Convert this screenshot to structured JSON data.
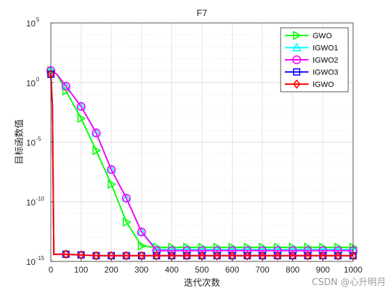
{
  "chart_data": {
    "type": "line",
    "title": "F7",
    "xlabel": "迭代次数",
    "ylabel": "目标函数值",
    "xlim": [
      0,
      1000
    ],
    "ylim": [
      1e-15,
      100000
    ],
    "yscale": "log",
    "grid": true,
    "legend_position": "top-right",
    "x_ticks": [
      0,
      100,
      200,
      300,
      400,
      500,
      600,
      700,
      800,
      900,
      1000
    ],
    "y_ticks": [
      {
        "base": "10",
        "exp": "-15",
        "value": 1e-15
      },
      {
        "base": "10",
        "exp": "-10",
        "value": 1e-10
      },
      {
        "base": "10",
        "exp": "-5",
        "value": 1e-05
      },
      {
        "base": "10",
        "exp": "0",
        "value": 1
      },
      {
        "base": "10",
        "exp": "5",
        "value": 100000
      }
    ],
    "series": [
      {
        "name": "GWO",
        "color": "#00ff00",
        "marker": "triangle-right",
        "x": [
          0,
          20,
          50,
          100,
          150,
          200,
          250,
          300,
          350,
          400,
          450,
          500,
          550,
          600,
          650,
          700,
          750,
          800,
          850,
          900,
          950,
          1000
        ],
        "y": [
          10,
          5,
          0.2,
          0.001,
          2e-06,
          3e-09,
          2e-12,
          2e-14,
          1.5e-14,
          1.5e-14,
          1.5e-14,
          1.5e-14,
          1.5e-14,
          1.5e-14,
          1.5e-14,
          1.5e-14,
          1.5e-14,
          1.5e-14,
          1.5e-14,
          1.5e-14,
          1.5e-14,
          1.5e-14
        ]
      },
      {
        "name": "IGWO1",
        "color": "#00ffff",
        "marker": "triangle-up",
        "x": [
          0,
          20,
          50,
          100,
          150,
          200,
          250,
          300,
          350,
          400,
          450,
          500,
          550,
          600,
          650,
          700,
          750,
          800,
          850,
          900,
          950,
          1000
        ],
        "y": [
          10,
          5,
          0.5,
          0.01,
          6e-05,
          5e-08,
          2e-10,
          3e-13,
          1e-14,
          1e-14,
          1e-14,
          1e-14,
          1e-14,
          1e-14,
          1e-14,
          1e-14,
          1e-14,
          1e-14,
          1e-14,
          1e-14,
          1e-14,
          1e-14
        ]
      },
      {
        "name": "IGWO2",
        "color": "#ff00ff",
        "marker": "circle",
        "x": [
          0,
          20,
          50,
          100,
          150,
          200,
          250,
          300,
          350,
          400,
          450,
          500,
          550,
          600,
          650,
          700,
          750,
          800,
          850,
          900,
          950,
          1000
        ],
        "y": [
          10,
          5,
          0.5,
          0.01,
          6e-05,
          5e-08,
          2e-10,
          3e-13,
          8e-15,
          8e-15,
          8e-15,
          8e-15,
          8e-15,
          8e-15,
          8e-15,
          8e-15,
          8e-15,
          8e-15,
          8e-15,
          8e-15,
          8e-15,
          8e-15
        ]
      },
      {
        "name": "IGWO3",
        "color": "#0000ff",
        "marker": "square",
        "x": [
          0,
          5,
          10,
          50,
          100,
          150,
          200,
          250,
          300,
          350,
          400,
          450,
          500,
          550,
          600,
          650,
          700,
          750,
          800,
          850,
          900,
          950,
          1000
        ],
        "y": [
          5,
          0.01,
          4e-15,
          4e-15,
          3.5e-15,
          3e-15,
          3e-15,
          3e-15,
          3e-15,
          3e-15,
          3e-15,
          3e-15,
          3e-15,
          3e-15,
          3e-15,
          3e-15,
          3e-15,
          3e-15,
          3e-15,
          3e-15,
          3e-15,
          3e-15,
          3e-15
        ]
      },
      {
        "name": "IGWO",
        "color": "#ff0000",
        "marker": "diamond",
        "x": [
          0,
          5,
          10,
          50,
          100,
          150,
          200,
          250,
          300,
          350,
          400,
          450,
          500,
          550,
          600,
          650,
          700,
          750,
          800,
          850,
          900,
          950,
          1000
        ],
        "y": [
          5,
          0.01,
          4e-15,
          4e-15,
          3.5e-15,
          3e-15,
          3e-15,
          3e-15,
          3e-15,
          3e-15,
          3e-15,
          3e-15,
          3e-15,
          3e-15,
          3e-15,
          3e-15,
          3e-15,
          3e-15,
          3e-15,
          3e-15,
          3e-15,
          3e-15,
          3e-15
        ]
      }
    ]
  },
  "watermark": "CSDN @心升明月"
}
